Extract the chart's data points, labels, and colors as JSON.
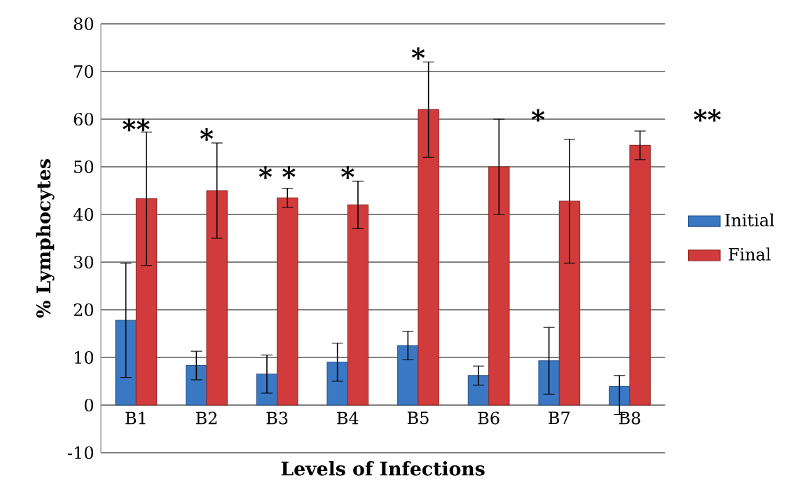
{
  "chart_data": {
    "type": "bar",
    "xlabel": "Levels of Infections",
    "ylabel": "% Lymphocytes",
    "categories": [
      "B1",
      "B2",
      "B3",
      "B4",
      "B5",
      "B6",
      "B7",
      "B8"
    ],
    "series": [
      {
        "name": "Initial",
        "color": "#3a78c3",
        "values": [
          17.8,
          8.3,
          6.5,
          9,
          12.5,
          6.2,
          9.3,
          3.9
        ],
        "errors": [
          12,
          3,
          4,
          4,
          3,
          2,
          7,
          [
            -2,
            6.2
          ]
        ]
      },
      {
        "name": "Final",
        "color": "#d13b3b",
        "values": [
          43.3,
          45,
          43.5,
          42,
          62,
          50,
          42.8,
          54.5
        ],
        "errors": [
          14,
          10,
          2,
          5,
          10,
          10,
          13,
          3
        ]
      }
    ],
    "ylim": [
      -10,
      80
    ],
    "yticks": [
      -10,
      0,
      10,
      20,
      30,
      40,
      50,
      60,
      70,
      80
    ],
    "grid": "y",
    "legend": "right",
    "annotations": [
      {
        "text": "**",
        "x": "B1",
        "y": 58
      },
      {
        "text": "*",
        "x": "B2",
        "y": 56
      },
      "* *",
      {
        "text": "*",
        "x": "B4",
        "y": 48
      },
      {
        "text": "*",
        "x": "B5",
        "y": 73
      },
      "*",
      "**"
    ]
  }
}
